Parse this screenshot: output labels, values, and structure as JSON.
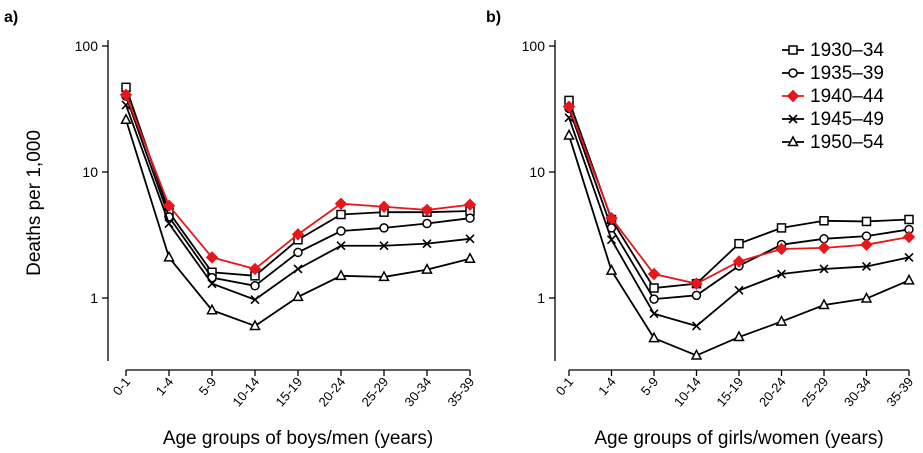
{
  "chart_data": [
    {
      "type": "line",
      "panel_label": "a)",
      "xlabel": "Age groups of boys/men (years)",
      "ylabel": "Deaths per 1,000",
      "yscale": "log",
      "ylim": [
        0.3,
        100
      ],
      "yticks": [
        "1",
        "10",
        "100"
      ],
      "categories": [
        "0-1",
        "1-4",
        "5-9",
        "10-14",
        "15-19",
        "20-24",
        "25-29",
        "30-34",
        "35-39"
      ],
      "series": [
        {
          "name": "1930–34",
          "marker": "square",
          "color": "#000000",
          "values": [
            47,
            4.8,
            1.6,
            1.5,
            2.9,
            4.6,
            4.8,
            4.8,
            4.9
          ]
        },
        {
          "name": "1935–39",
          "marker": "circle",
          "color": "#000000",
          "values": [
            40,
            4.4,
            1.45,
            1.25,
            2.3,
            3.4,
            3.6,
            3.9,
            4.3
          ]
        },
        {
          "name": "1940–44",
          "marker": "diamond",
          "color": "#e8171b",
          "values": [
            41,
            5.4,
            2.1,
            1.7,
            3.2,
            5.6,
            5.3,
            5.0,
            5.5
          ]
        },
        {
          "name": "1945–49",
          "marker": "x",
          "color": "#000000",
          "values": [
            34,
            3.9,
            1.3,
            0.97,
            1.7,
            2.6,
            2.6,
            2.7,
            2.95
          ]
        },
        {
          "name": "1950–54",
          "marker": "triangle",
          "color": "#000000",
          "values": [
            26,
            2.1,
            0.8,
            0.6,
            1.02,
            1.5,
            1.47,
            1.68,
            2.05
          ]
        }
      ]
    },
    {
      "type": "line",
      "panel_label": "b)",
      "xlabel": "Age groups of girls/women (years)",
      "ylabel": "",
      "yscale": "log",
      "ylim": [
        0.3,
        100
      ],
      "yticks": [
        "1",
        "10",
        "100"
      ],
      "categories": [
        "0-1",
        "1-4",
        "5-9",
        "10-14",
        "15-19",
        "20-24",
        "25-29",
        "30-34",
        "35-39"
      ],
      "series": [
        {
          "name": "1930–34",
          "marker": "square",
          "color": "#000000",
          "values": [
            37,
            4.2,
            1.2,
            1.3,
            2.7,
            3.6,
            4.1,
            4.05,
            4.2
          ]
        },
        {
          "name": "1935–39",
          "marker": "circle",
          "color": "#000000",
          "values": [
            32,
            3.6,
            0.98,
            1.05,
            1.8,
            2.65,
            2.95,
            3.1,
            3.5
          ]
        },
        {
          "name": "1940–44",
          "marker": "diamond",
          "color": "#e8171b",
          "values": [
            33,
            4.3,
            1.55,
            1.3,
            1.95,
            2.45,
            2.5,
            2.65,
            3.05
          ]
        },
        {
          "name": "1945–49",
          "marker": "x",
          "color": "#000000",
          "values": [
            27,
            2.9,
            0.75,
            0.6,
            1.15,
            1.55,
            1.7,
            1.78,
            2.1
          ]
        },
        {
          "name": "1950–54",
          "marker": "triangle",
          "color": "#000000",
          "values": [
            19.5,
            1.65,
            0.48,
            0.35,
            0.49,
            0.65,
            0.88,
            0.99,
            1.38
          ]
        }
      ],
      "legend": {
        "placement": "top-right",
        "items": [
          "1930–34",
          "1935–39",
          "1940–44",
          "1945–49",
          "1950–54"
        ]
      }
    }
  ]
}
